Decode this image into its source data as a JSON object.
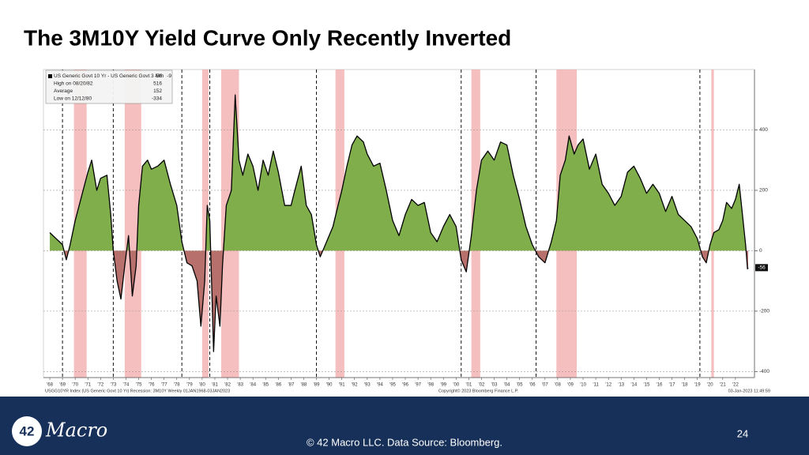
{
  "chart_data": {
    "type": "area",
    "title": "The 3M10Y Yield Curve Only Recently Inverted",
    "legend_box": {
      "series_label": "US Generic Govt 10 Yr - US Generic Govt 3 Mth",
      "series_last": -56,
      "series_change": -9,
      "high_label": "High on 08/20/82",
      "high": 516,
      "average_label": "Average",
      "average": 152,
      "low_label": "Low on 12/12/80",
      "low": -334
    },
    "source_left": "USGG10YR Index (US Generic Govt 10 Yr) Recession: 3M10Y  Weekly 01JAN1968-03JAN2023",
    "source_center": "Copyright© 2023 Bloomberg Finance L.P.",
    "source_right": "03-Jan-2023 11:49:59",
    "x": [
      1968.0,
      1968.5,
      1969.0,
      1969.3,
      1969.6,
      1970.0,
      1970.5,
      1971.0,
      1971.3,
      1971.7,
      1972.0,
      1972.5,
      1972.8,
      1973.0,
      1973.3,
      1973.6,
      1973.9,
      1974.2,
      1974.5,
      1974.8,
      1975.0,
      1975.3,
      1975.7,
      1976.0,
      1976.5,
      1977.0,
      1977.5,
      1978.0,
      1978.4,
      1978.8,
      1979.2,
      1979.6,
      1979.9,
      1980.2,
      1980.4,
      1980.6,
      1980.9,
      1981.1,
      1981.4,
      1981.6,
      1981.9,
      1982.3,
      1982.6,
      1982.9,
      1983.2,
      1983.6,
      1984.0,
      1984.4,
      1984.8,
      1985.2,
      1985.6,
      1986.0,
      1986.5,
      1987.0,
      1987.3,
      1987.8,
      1988.2,
      1988.6,
      1989.0,
      1989.3,
      1989.8,
      1990.3,
      1990.7,
      1991.0,
      1991.4,
      1991.8,
      1992.2,
      1992.7,
      1993.0,
      1993.5,
      1994.0,
      1994.5,
      1995.0,
      1995.5,
      1996.0,
      1996.5,
      1997.0,
      1997.5,
      1998.0,
      1998.5,
      1999.0,
      1999.5,
      2000.0,
      2000.4,
      2000.8,
      2001.2,
      2001.6,
      2002.0,
      2002.5,
      2003.0,
      2003.5,
      2004.0,
      2004.5,
      2005.0,
      2005.5,
      2006.0,
      2006.5,
      2007.0,
      2007.5,
      2007.9,
      2008.2,
      2008.6,
      2008.9,
      2009.3,
      2009.6,
      2010.0,
      2010.5,
      2011.0,
      2011.5,
      2012.0,
      2012.5,
      2013.0,
      2013.5,
      2014.0,
      2014.5,
      2015.0,
      2015.5,
      2016.0,
      2016.5,
      2017.0,
      2017.5,
      2018.0,
      2018.5,
      2019.0,
      2019.4,
      2019.7,
      2020.0,
      2020.3,
      2020.7,
      2021.0,
      2021.3,
      2021.7,
      2022.0,
      2022.3,
      2022.6,
      2022.8,
      2022.95,
      2023.0
    ],
    "series": [
      {
        "name": "US Generic Govt 10 Yr - US Generic Govt 3 Mth",
        "color": "#000000",
        "fill_positive": "#7fae4a",
        "fill_negative": "#b8706c",
        "values": [
          60,
          40,
          20,
          -30,
          20,
          100,
          180,
          260,
          300,
          200,
          240,
          250,
          120,
          0,
          -100,
          -160,
          -50,
          50,
          -150,
          -50,
          150,
          280,
          300,
          270,
          280,
          300,
          220,
          150,
          30,
          -40,
          -50,
          -100,
          -250,
          -100,
          150,
          100,
          -334,
          -150,
          -250,
          -50,
          150,
          200,
          516,
          300,
          250,
          320,
          280,
          200,
          300,
          250,
          330,
          260,
          150,
          150,
          200,
          280,
          150,
          120,
          20,
          -20,
          30,
          80,
          150,
          200,
          280,
          350,
          380,
          360,
          320,
          280,
          290,
          200,
          100,
          50,
          120,
          170,
          150,
          160,
          60,
          30,
          80,
          120,
          80,
          -30,
          -70,
          50,
          200,
          300,
          330,
          300,
          360,
          350,
          250,
          170,
          80,
          20,
          -20,
          -40,
          30,
          100,
          250,
          300,
          380,
          320,
          350,
          370,
          270,
          320,
          220,
          190,
          150,
          180,
          260,
          280,
          240,
          190,
          220,
          190,
          130,
          180,
          120,
          100,
          80,
          40,
          -20,
          -40,
          20,
          60,
          70,
          100,
          160,
          140,
          170,
          220,
          100,
          20,
          -60,
          -56
        ]
      }
    ],
    "recessions": [
      [
        1969.9,
        1970.9
      ],
      [
        1973.9,
        1975.2
      ],
      [
        1980.0,
        1980.5
      ],
      [
        1981.5,
        1982.9
      ],
      [
        1990.5,
        1991.2
      ],
      [
        2001.2,
        2001.9
      ],
      [
        2007.9,
        2009.5
      ],
      [
        2020.1,
        2020.3
      ]
    ],
    "inversion_lines": [
      1969.0,
      1973.0,
      1978.4,
      1980.6,
      1989.0,
      2000.4,
      2006.3,
      2019.2
    ],
    "recession_color": "#f2a9a9",
    "xlim": [
      1967.5,
      2023.5
    ],
    "ylim": [
      -420,
      600
    ],
    "yticks": [
      400,
      200,
      0,
      -200,
      -400
    ],
    "y_axis_side": "right",
    "grid": true,
    "xticks": [
      {
        "value": 1968,
        "label": "'68"
      },
      {
        "value": 1969,
        "label": "'69"
      },
      {
        "value": 1970,
        "label": "'70"
      },
      {
        "value": 1971,
        "label": "'71"
      },
      {
        "value": 1972,
        "label": "'72"
      },
      {
        "value": 1973,
        "label": "'73"
      },
      {
        "value": 1974,
        "label": "'74"
      },
      {
        "value": 1975,
        "label": "'75"
      },
      {
        "value": 1976,
        "label": "'76"
      },
      {
        "value": 1977,
        "label": "'77"
      },
      {
        "value": 1978,
        "label": "'78"
      },
      {
        "value": 1979,
        "label": "'79"
      },
      {
        "value": 1980,
        "label": "'80"
      },
      {
        "value": 1981,
        "label": "'81"
      },
      {
        "value": 1982,
        "label": "'82"
      },
      {
        "value": 1983,
        "label": "'83"
      },
      {
        "value": 1984,
        "label": "'84"
      },
      {
        "value": 1985,
        "label": "'85"
      },
      {
        "value": 1986,
        "label": "'86"
      },
      {
        "value": 1987,
        "label": "'87"
      },
      {
        "value": 1988,
        "label": "'88"
      },
      {
        "value": 1989,
        "label": "'89"
      },
      {
        "value": 1990,
        "label": "'90"
      },
      {
        "value": 1991,
        "label": "'91"
      },
      {
        "value": 1992,
        "label": "'92"
      },
      {
        "value": 1993,
        "label": "'93"
      },
      {
        "value": 1994,
        "label": "'94"
      },
      {
        "value": 1995,
        "label": "'95"
      },
      {
        "value": 1996,
        "label": "'96"
      },
      {
        "value": 1997,
        "label": "'97"
      },
      {
        "value": 1998,
        "label": "'98"
      },
      {
        "value": 1999,
        "label": "'99"
      },
      {
        "value": 2000,
        "label": "'00"
      },
      {
        "value": 2001,
        "label": "'01"
      },
      {
        "value": 2002,
        "label": "'02"
      },
      {
        "value": 2003,
        "label": "'03"
      },
      {
        "value": 2004,
        "label": "'04"
      },
      {
        "value": 2005,
        "label": "'05"
      },
      {
        "value": 2006,
        "label": "'06"
      },
      {
        "value": 2007,
        "label": "'07"
      },
      {
        "value": 2008,
        "label": "'08"
      },
      {
        "value": 2009,
        "label": "'09"
      },
      {
        "value": 2010,
        "label": "'10"
      },
      {
        "value": 2011,
        "label": "'11"
      },
      {
        "value": 2012,
        "label": "'12"
      },
      {
        "value": 2013,
        "label": "'13"
      },
      {
        "value": 2014,
        "label": "'14"
      },
      {
        "value": 2015,
        "label": "'15"
      },
      {
        "value": 2016,
        "label": "'16"
      },
      {
        "value": 2017,
        "label": "'17"
      },
      {
        "value": 2018,
        "label": "'18"
      },
      {
        "value": 2019,
        "label": "'19"
      },
      {
        "value": 2020,
        "label": "'20"
      },
      {
        "value": 2021,
        "label": "'21"
      },
      {
        "value": 2022,
        "label": "'22"
      }
    ]
  },
  "footer": {
    "logo_number": "42",
    "logo_text": "Macro",
    "credit": "© 42 Macro LLC. Data Source: Bloomberg.",
    "page_number": "24"
  }
}
